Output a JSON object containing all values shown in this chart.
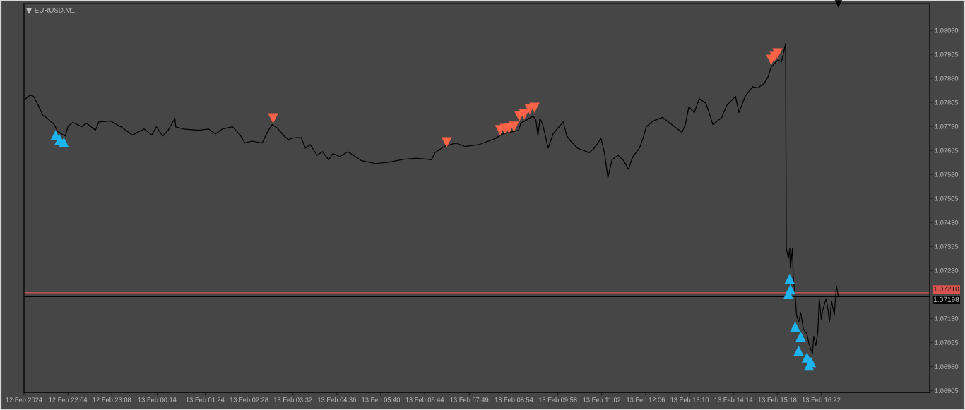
{
  "chart_data": {
    "type": "line",
    "title": "EURUSD,M1",
    "xlim": [
      "2024-02-12T21:00",
      "2024-02-13T19:00"
    ],
    "ylim": [
      1.06899,
      1.08114
    ],
    "xticks": [
      {
        "value": "2024-02-12T21:00",
        "label": "12 Feb 2024"
      },
      {
        "value": "2024-02-12T22:04",
        "label": "12 Feb 22:04"
      },
      {
        "value": "2024-02-12T23:08",
        "label": "12 Feb 23:08"
      },
      {
        "value": "2024-02-13T00:14",
        "label": "13 Feb 00:14"
      },
      {
        "value": "2024-02-13T01:24",
        "label": "13 Feb 01:24"
      },
      {
        "value": "2024-02-13T02:28",
        "label": "13 Feb 02:28"
      },
      {
        "value": "2024-02-13T03:32",
        "label": "13 Feb 03:32"
      },
      {
        "value": "2024-02-13T04:36",
        "label": "13 Feb 04:36"
      },
      {
        "value": "2024-02-13T05:40",
        "label": "13 Feb 05:40"
      },
      {
        "value": "2024-02-13T06:44",
        "label": "13 Feb 06:44"
      },
      {
        "value": "2024-02-13T07:49",
        "label": "13 Feb 07:49"
      },
      {
        "value": "2024-02-13T08:54",
        "label": "13 Feb 08:54"
      },
      {
        "value": "2024-02-13T09:58",
        "label": "13 Feb 09:58"
      },
      {
        "value": "2024-02-13T11:02",
        "label": "13 Feb 11:02"
      },
      {
        "value": "2024-02-13T12:06",
        "label": "13 Feb 12:06"
      },
      {
        "value": "2024-02-13T13:10",
        "label": "13 Feb 13:10"
      },
      {
        "value": "2024-02-13T14:14",
        "label": "13 Feb 14:14"
      },
      {
        "value": "2024-02-13T15:18",
        "label": "13 Feb 15:18"
      },
      {
        "value": "2024-02-13T16:22",
        "label": "13 Feb 16:22"
      }
    ],
    "yticks": [
      {
        "value": 1.06905,
        "label": "1.06905"
      },
      {
        "value": 1.0698,
        "label": "1.06980"
      },
      {
        "value": 1.07055,
        "label": "1.07055"
      },
      {
        "value": 1.0713,
        "label": "1.07130"
      },
      {
        "value": 1.0728,
        "label": "1.07280"
      },
      {
        "value": 1.07355,
        "label": "1.07355"
      },
      {
        "value": 1.0743,
        "label": "1.07430"
      },
      {
        "value": 1.07505,
        "label": "1.07505"
      },
      {
        "value": 1.0758,
        "label": "1.07580"
      },
      {
        "value": 1.07655,
        "label": "1.07655"
      },
      {
        "value": 1.0773,
        "label": "1.07730"
      },
      {
        "value": 1.07805,
        "label": "1.07805"
      },
      {
        "value": 1.0788,
        "label": "1.07880"
      },
      {
        "value": 1.07955,
        "label": "1.07955"
      },
      {
        "value": 1.0803,
        "label": "1.08030"
      }
    ],
    "series": [
      {
        "color": "#000000",
        "line_style": "solid",
        "x": [
          "2024-02-12T21:00",
          "2024-02-12T21:09",
          "2024-02-12T21:14",
          "2024-02-12T21:21",
          "2024-02-12T21:27",
          "2024-02-12T21:34",
          "2024-02-12T21:44",
          "2024-02-12T21:49",
          "2024-02-12T22:00",
          "2024-02-12T22:04",
          "2024-02-12T22:11",
          "2024-02-12T22:24",
          "2024-02-12T22:31",
          "2024-02-12T22:44",
          "2024-02-12T22:49",
          "2024-02-12T23:06",
          "2024-02-12T23:21",
          "2024-02-12T23:38",
          "2024-02-12T23:55",
          "2024-02-13T00:06",
          "2024-02-13T00:13",
          "2024-02-13T00:22",
          "2024-02-13T00:30",
          "2024-02-13T00:40",
          "2024-02-13T00:41",
          "2024-02-13T00:52",
          "2024-02-13T01:14",
          "2024-02-13T01:29",
          "2024-02-13T01:39",
          "2024-02-13T01:49",
          "2024-02-13T02:04",
          "2024-02-13T02:15",
          "2024-02-13T02:22",
          "2024-02-13T02:32",
          "2024-02-13T02:47",
          "2024-02-13T02:55",
          "2024-02-13T03:02",
          "2024-02-13T03:09",
          "2024-02-13T03:19",
          "2024-02-13T03:25",
          "2024-02-13T03:35",
          "2024-02-13T03:44",
          "2024-02-13T03:50",
          "2024-02-13T03:57",
          "2024-02-13T04:07",
          "2024-02-13T04:15",
          "2024-02-13T04:24",
          "2024-02-13T04:30",
          "2024-02-13T04:40",
          "2024-02-13T04:52",
          "2024-02-13T05:12",
          "2024-02-13T05:32",
          "2024-02-13T05:52",
          "2024-02-13T06:12",
          "2024-02-13T06:32",
          "2024-02-13T06:54",
          "2024-02-13T06:59",
          "2024-02-13T07:12",
          "2024-02-13T07:30",
          "2024-02-13T07:43",
          "2024-02-13T08:03",
          "2024-02-13T08:27",
          "2024-02-13T08:37",
          "2024-02-13T09:01",
          "2024-02-13T09:04",
          "2024-02-13T09:22",
          "2024-02-13T09:26",
          "2024-02-13T09:29",
          "2024-02-13T09:32",
          "2024-02-13T09:36",
          "2024-02-13T09:44",
          "2024-02-13T09:51",
          "2024-02-13T09:57",
          "2024-02-13T10:06",
          "2024-02-13T10:11",
          "2024-02-13T10:17",
          "2024-02-13T10:27",
          "2024-02-13T10:44",
          "2024-02-13T10:51",
          "2024-02-13T11:01",
          "2024-02-13T11:06",
          "2024-02-13T11:11",
          "2024-02-13T11:17",
          "2024-02-13T11:26",
          "2024-02-13T11:34",
          "2024-02-13T11:41",
          "2024-02-13T11:47",
          "2024-02-13T11:57",
          "2024-02-13T12:02",
          "2024-02-13T12:07",
          "2024-02-13T12:17",
          "2024-02-13T12:31",
          "2024-02-13T12:44",
          "2024-02-13T12:59",
          "2024-02-13T13:04",
          "2024-02-13T13:09",
          "2024-02-13T13:17",
          "2024-02-13T13:24",
          "2024-02-13T13:34",
          "2024-02-13T13:44",
          "2024-02-13T13:57",
          "2024-02-13T14:04",
          "2024-02-13T14:17",
          "2024-02-13T14:22",
          "2024-02-13T14:31",
          "2024-02-13T14:42",
          "2024-02-13T14:49",
          "2024-02-13T14:59",
          "2024-02-13T15:04",
          "2024-02-13T15:09",
          "2024-02-13T15:14",
          "2024-02-13T15:19",
          "2024-02-13T15:24",
          "2024-02-13T15:30",
          "2024-02-13T15:31",
          "2024-02-13T15:34",
          "2024-02-13T15:36",
          "2024-02-13T15:37",
          "2024-02-13T15:40",
          "2024-02-13T15:41",
          "2024-02-13T15:44",
          "2024-02-13T15:46",
          "2024-02-13T15:49",
          "2024-02-13T15:52",
          "2024-02-13T15:56",
          "2024-02-13T16:01",
          "2024-02-13T16:04",
          "2024-02-13T16:09",
          "2024-02-13T16:11",
          "2024-02-13T16:14",
          "2024-02-13T16:17",
          "2024-02-13T16:19",
          "2024-02-13T16:22",
          "2024-02-13T16:24",
          "2024-02-13T16:29",
          "2024-02-13T16:32",
          "2024-02-13T16:34",
          "2024-02-13T16:37",
          "2024-02-13T16:41",
          "2024-02-13T16:44",
          "2024-02-13T16:47"
        ],
        "values": [
          1.07813,
          1.07828,
          1.07824,
          1.07795,
          1.07766,
          1.07755,
          1.07736,
          1.07714,
          1.077,
          1.07729,
          1.07743,
          1.07729,
          1.0774,
          1.07718,
          1.07744,
          1.07747,
          1.07729,
          1.07703,
          1.07722,
          1.07703,
          1.07729,
          1.077,
          1.07718,
          1.07755,
          1.07729,
          1.07722,
          1.07718,
          1.07722,
          1.07706,
          1.07722,
          1.07729,
          1.07703,
          1.07678,
          1.07684,
          1.07678,
          1.07714,
          1.07736,
          1.07725,
          1.077,
          1.07689,
          1.07695,
          1.07695,
          1.07662,
          1.07673,
          1.0764,
          1.07651,
          1.07626,
          1.07645,
          1.07636,
          1.07651,
          1.07623,
          1.07614,
          1.07618,
          1.07627,
          1.07631,
          1.07626,
          1.07648,
          1.07667,
          1.07678,
          1.07667,
          1.07673,
          1.07692,
          1.07706,
          1.07718,
          1.0774,
          1.07762,
          1.07751,
          1.077,
          1.07755,
          1.07736,
          1.07662,
          1.07706,
          1.07722,
          1.07744,
          1.077,
          1.07684,
          1.07662,
          1.07648,
          1.07662,
          1.07692,
          1.07648,
          1.0757,
          1.07626,
          1.0764,
          1.07623,
          1.07596,
          1.07634,
          1.07662,
          1.07692,
          1.07729,
          1.07747,
          1.07758,
          1.07736,
          1.07711,
          1.07736,
          1.07791,
          1.07773,
          1.07817,
          1.07802,
          1.07736,
          1.07758,
          1.07795,
          1.07824,
          1.07773,
          1.07824,
          1.07854,
          1.0785,
          1.07865,
          1.07883,
          1.07916,
          1.07927,
          1.07938,
          1.07931,
          1.07989,
          1.07349,
          1.07317,
          1.07349,
          1.07287,
          1.07349,
          1.07265,
          1.07199,
          1.0714,
          1.07118,
          1.07148,
          1.07096,
          1.07082,
          1.07052,
          1.07019,
          1.07074,
          1.07045,
          1.07089,
          1.07192,
          1.07126,
          1.07155,
          1.07192,
          1.07155,
          1.07118,
          1.07184,
          1.0714,
          1.07232,
          1.07198
        ]
      },
      {
        "type": "scatter",
        "color": "#1eb4f0",
        "marker": "triangle",
        "x": [
          "2024-02-12T21:46",
          "2024-02-12T21:52",
          "2024-02-12T21:58",
          "2024-02-13T15:34",
          "2024-02-13T15:36",
          "2024-02-13T15:37",
          "2024-02-13T15:44",
          "2024-02-13T15:49",
          "2024-02-13T15:52",
          "2024-02-13T16:01",
          "2024-02-13T16:04",
          "2024-02-13T16:07"
        ],
        "values": [
          1.07702,
          1.07689,
          1.0768,
          1.07206,
          1.07254,
          1.07221,
          1.07104,
          1.07029,
          1.07073,
          1.07008,
          1.06983,
          1.06994
        ]
      },
      {
        "type": "scatter",
        "color": "#ff6347",
        "marker": "triangle",
        "x": [
          "2024-02-13T03:03",
          "2024-02-13T07:16",
          "2024-02-13T08:34",
          "2024-02-13T08:41",
          "2024-02-13T08:47",
          "2024-02-13T08:54",
          "2024-02-13T09:02",
          "2024-02-13T09:09",
          "2024-02-13T09:17",
          "2024-02-13T09:24",
          "2024-02-13T15:09",
          "2024-02-13T15:14",
          "2024-02-13T15:18"
        ],
        "values": [
          1.07755,
          1.0768,
          1.07718,
          1.07722,
          1.07724,
          1.07729,
          1.07762,
          1.07768,
          1.07784,
          1.07788,
          1.07938,
          1.07949,
          1.07958
        ]
      }
    ],
    "ref_lines": [
      {
        "axis": "y",
        "value": 1.0721,
        "label": "1.07210",
        "color": "#d9534f"
      },
      {
        "axis": "y",
        "value": 1.07198,
        "label": "1.07198",
        "color": "#000000"
      }
    ]
  }
}
